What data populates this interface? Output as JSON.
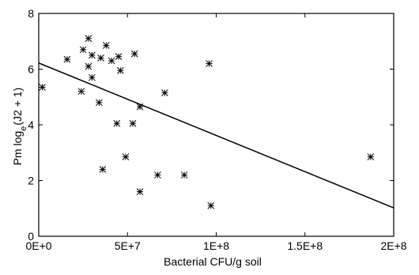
{
  "chart_data": {
    "type": "scatter",
    "title": "",
    "xlabel": "Bacterial CFU/g soil",
    "ylabel_main": "Pm log",
    "ylabel_sub": "e",
    "ylabel_tail": "(J2 + 1)",
    "xlim": [
      0,
      200000000
    ],
    "ylim": [
      0,
      8
    ],
    "x_ticks": [
      0,
      50000000,
      100000000,
      150000000,
      200000000
    ],
    "x_tick_labels": [
      "0E+0",
      "5E+7",
      "1E+8",
      "1.5E+8",
      "2E+8"
    ],
    "y_ticks": [
      0,
      2,
      4,
      6,
      8
    ],
    "y_tick_labels": [
      "0",
      "2",
      "4",
      "6",
      "8"
    ],
    "marker": "asterisk",
    "color": "#000000",
    "grid": false,
    "points": [
      {
        "x": 2000000,
        "y": 5.35
      },
      {
        "x": 16000000,
        "y": 6.35
      },
      {
        "x": 24000000,
        "y": 5.2
      },
      {
        "x": 25000000,
        "y": 6.7
      },
      {
        "x": 28000000,
        "y": 7.1
      },
      {
        "x": 28000000,
        "y": 6.1
      },
      {
        "x": 30000000,
        "y": 6.5
      },
      {
        "x": 30000000,
        "y": 5.7
      },
      {
        "x": 34000000,
        "y": 4.8
      },
      {
        "x": 35000000,
        "y": 6.4
      },
      {
        "x": 36000000,
        "y": 2.4
      },
      {
        "x": 38000000,
        "y": 6.85
      },
      {
        "x": 41000000,
        "y": 6.3
      },
      {
        "x": 44000000,
        "y": 4.05
      },
      {
        "x": 45000000,
        "y": 6.45
      },
      {
        "x": 46000000,
        "y": 5.95
      },
      {
        "x": 49000000,
        "y": 2.85
      },
      {
        "x": 53000000,
        "y": 4.05
      },
      {
        "x": 54000000,
        "y": 6.55
      },
      {
        "x": 57000000,
        "y": 4.65
      },
      {
        "x": 57000000,
        "y": 1.6
      },
      {
        "x": 67000000,
        "y": 2.2
      },
      {
        "x": 71000000,
        "y": 5.15
      },
      {
        "x": 82000000,
        "y": 2.2
      },
      {
        "x": 96000000,
        "y": 6.2
      },
      {
        "x": 97000000,
        "y": 1.1
      },
      {
        "x": 187000000,
        "y": 2.85
      }
    ],
    "fit_line": {
      "x": [
        0,
        200000000
      ],
      "y": [
        6.22,
        1.02
      ]
    }
  }
}
